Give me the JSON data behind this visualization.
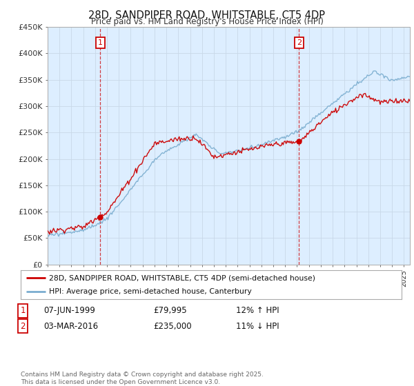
{
  "title": "28D, SANDPIPER ROAD, WHITSTABLE, CT5 4DP",
  "subtitle": "Price paid vs. HM Land Registry's House Price Index (HPI)",
  "ylabel_ticks": [
    "£0",
    "£50K",
    "£100K",
    "£150K",
    "£200K",
    "£250K",
    "£300K",
    "£350K",
    "£400K",
    "£450K"
  ],
  "ytick_values": [
    0,
    50000,
    100000,
    150000,
    200000,
    250000,
    300000,
    350000,
    400000,
    450000
  ],
  "ylim": [
    0,
    450000
  ],
  "xlim_start": 1995.0,
  "xlim_end": 2025.5,
  "legend_line1": "28D, SANDPIPER ROAD, WHITSTABLE, CT5 4DP (semi-detached house)",
  "legend_line2": "HPI: Average price, semi-detached house, Canterbury",
  "red_color": "#cc0000",
  "blue_color": "#7aadcf",
  "chart_bg": "#ddeeff",
  "marker1_x": 1999.44,
  "marker1_y": 79995,
  "marker2_x": 2016.17,
  "marker2_y": 235000,
  "background_color": "#ffffff",
  "grid_color": "#c8d8e8"
}
